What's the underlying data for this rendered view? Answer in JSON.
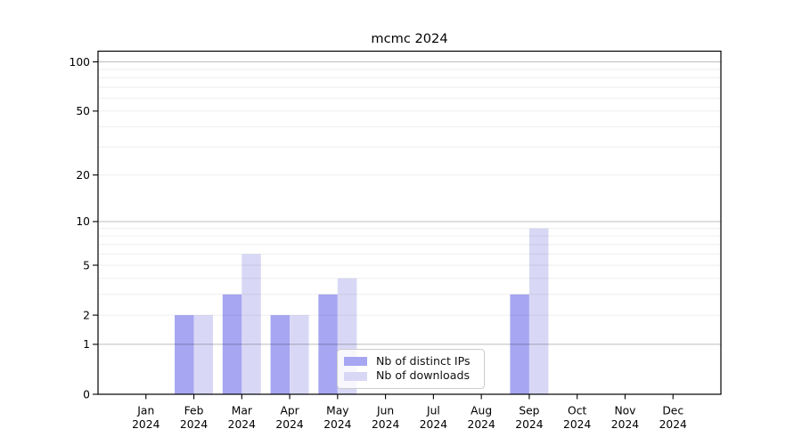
{
  "chart_data": {
    "type": "bar",
    "title": "mcmc 2024",
    "categories": [
      "Jan",
      "Feb",
      "Mar",
      "Apr",
      "May",
      "Jun",
      "Jul",
      "Aug",
      "Sep",
      "Oct",
      "Nov",
      "Dec"
    ],
    "year_label": "2024",
    "series": [
      {
        "name": "Nb of distinct IPs",
        "color": "#a6a6f2",
        "values": [
          0,
          2,
          3,
          2,
          3,
          0,
          0,
          0,
          3,
          0,
          0,
          0
        ]
      },
      {
        "name": "Nb of downloads",
        "color": "#d8d8f6",
        "values": [
          0,
          2,
          6,
          2,
          4,
          0,
          0,
          0,
          9,
          0,
          0,
          0
        ]
      }
    ],
    "yticks": [
      0,
      1,
      2,
      5,
      10,
      20,
      50,
      100
    ],
    "ylim": [
      0,
      100
    ],
    "yscale": "log10(value+1)",
    "major_gridlines": [
      1,
      10,
      100
    ],
    "minor_gridlines": [
      2,
      3,
      4,
      5,
      6,
      7,
      8,
      9,
      20,
      30,
      40,
      50,
      60,
      70,
      80,
      90
    ],
    "grid": true,
    "legend_position": "lower-center-inside"
  }
}
